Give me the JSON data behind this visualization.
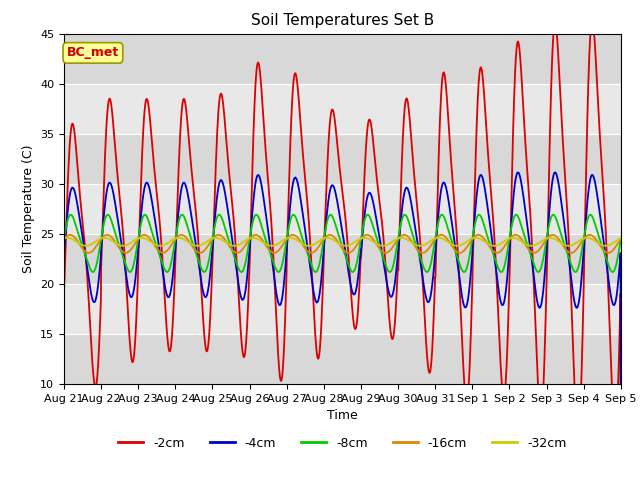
{
  "title": "Soil Temperatures Set B",
  "xlabel": "Time",
  "ylabel": "Soil Temperature (C)",
  "ylim": [
    10,
    45
  ],
  "x_tick_labels": [
    "Aug 21",
    "Aug 22",
    "Aug 23",
    "Aug 24",
    "Aug 25",
    "Aug 26",
    "Aug 27",
    "Aug 28",
    "Aug 29",
    "Aug 30",
    "Aug 31",
    "Sep 1",
    "Sep 2",
    "Sep 3",
    "Sep 4",
    "Sep 5"
  ],
  "series_names": [
    "-2cm",
    "-4cm",
    "-8cm",
    "-16cm",
    "-32cm"
  ],
  "colors": {
    "-2cm": "#dd0000",
    "-4cm": "#0000cc",
    "-8cm": "#00cc00",
    "-16cm": "#dd8800",
    "-32cm": "#cccc00"
  },
  "legend_label": "BC_met",
  "legend_text_color": "#cc0000",
  "legend_box_facecolor": "#ffff99",
  "legend_box_edgecolor": "#999900",
  "plot_bg_color": "#e8e8e8",
  "fig_bg_color": "#ffffff",
  "title_fontsize": 11,
  "axis_label_fontsize": 9,
  "tick_fontsize": 8,
  "legend_fontsize": 9,
  "linewidth": 1.3,
  "n_days": 15,
  "samples_per_day": 144
}
